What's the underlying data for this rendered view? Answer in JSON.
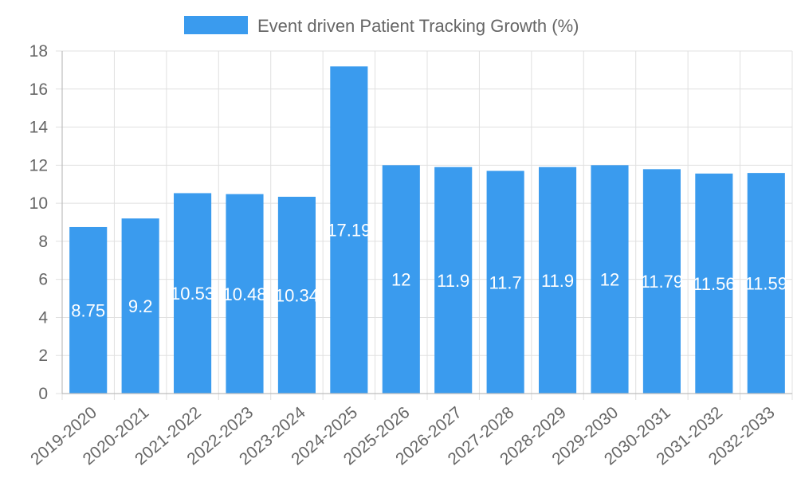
{
  "chart_data": {
    "type": "bar",
    "legend": {
      "label": "Event driven Patient Tracking Growth (%)",
      "position": "top-center"
    },
    "categories": [
      "2019-2020",
      "2020-2021",
      "2021-2022",
      "2022-2023",
      "2023-2024",
      "2024-2025",
      "2025-2026",
      "2026-2027",
      "2027-2028",
      "2028-2029",
      "2029-2030",
      "2030-2031",
      "2031-2032",
      "2032-2033"
    ],
    "values": [
      8.75,
      9.2,
      10.53,
      10.48,
      10.34,
      17.19,
      12,
      11.9,
      11.7,
      11.9,
      12,
      11.79,
      11.56,
      11.59
    ],
    "ylim": [
      0,
      18
    ],
    "yticks": [
      0,
      2,
      4,
      6,
      8,
      10,
      12,
      14,
      16,
      18
    ],
    "grid": true,
    "colors": {
      "bar": "#3a9bee",
      "grid": "#e0e0e0",
      "axis_text": "#666666",
      "data_label": "#ffffff"
    }
  }
}
